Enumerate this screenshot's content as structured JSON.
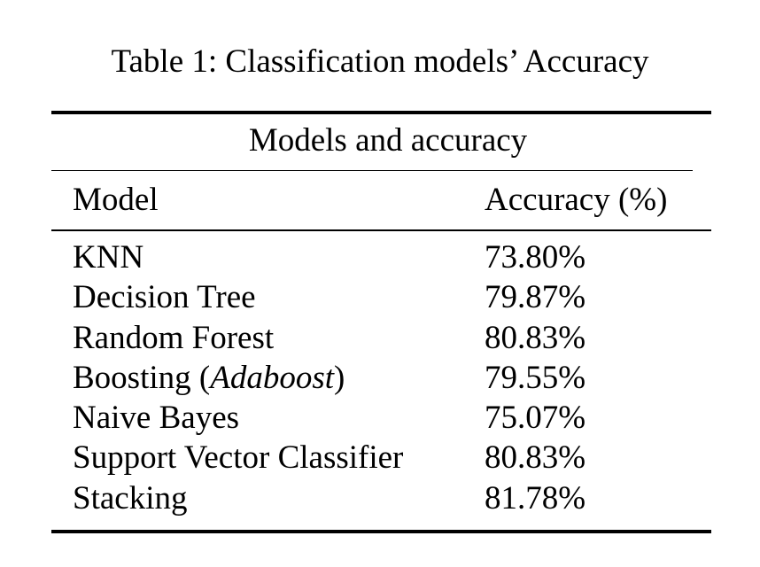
{
  "caption": "Table 1: Classification models’ Accuracy",
  "table": {
    "group_header": "Models and accuracy",
    "columns": [
      "Model",
      "Accuracy (%)"
    ],
    "rows": [
      {
        "model": "KNN",
        "model_italic": "",
        "model_suffix": "",
        "accuracy": "73.80%"
      },
      {
        "model": "Decision Tree",
        "model_italic": "",
        "model_suffix": "",
        "accuracy": "79.87%"
      },
      {
        "model": "Random Forest",
        "model_italic": "",
        "model_suffix": "",
        "accuracy": "80.83%"
      },
      {
        "model": "Boosting (",
        "model_italic": "Adaboost",
        "model_suffix": ")",
        "accuracy": "79.55%"
      },
      {
        "model": "Naive Bayes",
        "model_italic": "",
        "model_suffix": "",
        "accuracy": "75.07%"
      },
      {
        "model": "Support Vector Classifier",
        "model_italic": "",
        "model_suffix": "",
        "accuracy": "80.83%"
      },
      {
        "model": "Stacking",
        "model_italic": "",
        "model_suffix": "",
        "accuracy": "81.78%"
      }
    ]
  }
}
